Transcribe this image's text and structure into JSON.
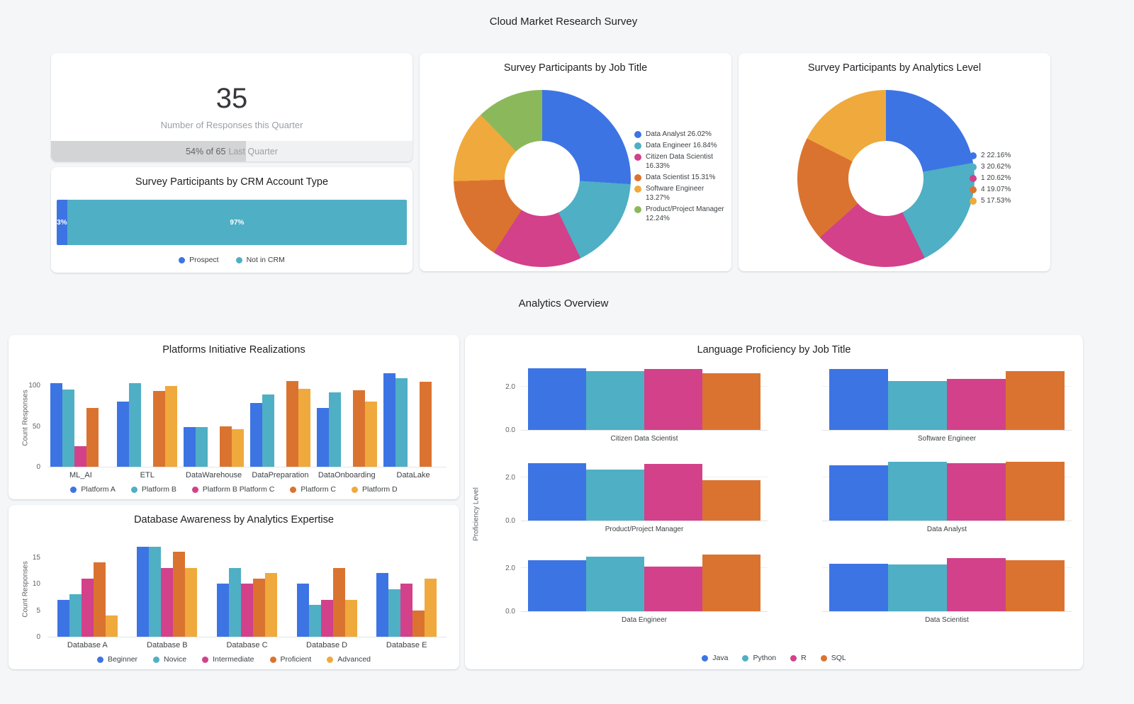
{
  "page": {
    "title": "Cloud Market Research Survey",
    "section_title": "Analytics Overview"
  },
  "colors": {
    "blue": "#3D74E4",
    "teal": "#4FAFC4",
    "pink": "#D2418A",
    "orange": "#DB7330",
    "amber": "#F0A93C",
    "green": "#8CB85C",
    "background": "#F4F6F8",
    "card": "#FFFFFF"
  },
  "scorecard": {
    "value": "35",
    "label": "Number of Responses this Quarter",
    "progress": {
      "strong": "54% of 65",
      "light": "Last Quarter",
      "percent": 54
    }
  },
  "chart_data": [
    {
      "id": "crm-account-type",
      "type": "bar",
      "variant": "stacked-horizontal",
      "title": "Survey Participants by CRM Account Type",
      "segments": [
        {
          "label": "Prospect",
          "value_label": "3%",
          "pct": 3,
          "color": "blue"
        },
        {
          "label": "Not in CRM",
          "value_label": "97%",
          "pct": 97,
          "color": "teal"
        }
      ]
    },
    {
      "id": "job-title-donut",
      "type": "pie",
      "title": "Survey Participants by Job Title",
      "slices": [
        {
          "label": "Data Analyst",
          "pct": 26.02,
          "color": "blue"
        },
        {
          "label": "Data Engineer",
          "pct": 16.84,
          "color": "teal"
        },
        {
          "label": "Citizen Data Scientist",
          "pct": 16.33,
          "color": "pink"
        },
        {
          "label": "Data Scientist",
          "pct": 15.31,
          "color": "orange"
        },
        {
          "label": "Software Engineer",
          "pct": 13.27,
          "color": "amber"
        },
        {
          "label": "Product/Project Manager",
          "pct": 12.24,
          "color": "green"
        }
      ]
    },
    {
      "id": "analytics-level-donut",
      "type": "pie",
      "title": "Survey Participants by Analytics Level",
      "slices": [
        {
          "label": "2",
          "pct": 22.16,
          "color": "blue"
        },
        {
          "label": "3",
          "pct": 20.62,
          "color": "teal"
        },
        {
          "label": "1",
          "pct": 20.62,
          "color": "pink"
        },
        {
          "label": "4",
          "pct": 19.07,
          "color": "orange"
        },
        {
          "label": "5",
          "pct": 17.53,
          "color": "amber"
        }
      ]
    },
    {
      "id": "platforms-initiative",
      "type": "bar",
      "variant": "grouped",
      "title": "Platforms Initiative Realizations",
      "ylabel": "Count Responses",
      "yticks": [
        0,
        50,
        100
      ],
      "ylim": [
        0,
        120
      ],
      "categories": [
        "ML_AI",
        "ETL",
        "DataWarehouse",
        "DataPreparation",
        "DataOnboarding",
        "DataLake"
      ],
      "series": [
        {
          "name": "Platform A",
          "color": "blue",
          "values": [
            103,
            80,
            49,
            78,
            72,
            115
          ]
        },
        {
          "name": "Platform B",
          "color": "teal",
          "values": [
            95,
            103,
            49,
            89,
            91,
            109
          ]
        },
        {
          "name": "Platform B Platform C",
          "color": "pink",
          "values": [
            25,
            null,
            null,
            null,
            null,
            null
          ]
        },
        {
          "name": "Platform C",
          "color": "orange",
          "values": [
            72,
            93,
            50,
            105,
            94,
            104
          ]
        },
        {
          "name": "Platform D",
          "color": "amber",
          "values": [
            null,
            99,
            46,
            96,
            80,
            null
          ]
        }
      ]
    },
    {
      "id": "database-awareness",
      "type": "bar",
      "variant": "grouped",
      "title": "Database Awareness by Analytics Expertise",
      "ylabel": "Count Responses",
      "yticks": [
        0,
        5,
        10,
        15
      ],
      "ylim": [
        0,
        18
      ],
      "categories": [
        "Database A",
        "Database B",
        "Database C",
        "Database D",
        "Database E"
      ],
      "series": [
        {
          "name": "Beginner",
          "color": "blue",
          "values": [
            7,
            17,
            10,
            10,
            12
          ]
        },
        {
          "name": "Novice",
          "color": "teal",
          "values": [
            8,
            17,
            13,
            6,
            9
          ]
        },
        {
          "name": "Intermediate",
          "color": "pink",
          "values": [
            11,
            13,
            10,
            7,
            10
          ]
        },
        {
          "name": "Proficient",
          "color": "orange",
          "values": [
            14,
            16,
            11,
            13,
            5
          ]
        },
        {
          "name": "Advanced",
          "color": "amber",
          "values": [
            4,
            13,
            12,
            7,
            11
          ]
        }
      ]
    },
    {
      "id": "language-proficiency",
      "type": "bar",
      "variant": "small-multiples",
      "title": "Language Proficiency by Job Title",
      "ylabel": "Proficiency Level",
      "yticks": [
        0,
        2
      ],
      "ylim": [
        0,
        3.1
      ],
      "series_labels": [
        "Java",
        "Python",
        "R",
        "SQL"
      ],
      "series_colors": [
        "blue",
        "teal",
        "pink",
        "orange"
      ],
      "panels": [
        {
          "label": "Citizen Data Scientist",
          "values": [
            2.85,
            2.7,
            2.8,
            2.6
          ]
        },
        {
          "label": "Software Engineer",
          "values": [
            2.8,
            2.25,
            2.35,
            2.7
          ]
        },
        {
          "label": "Product/Project Manager",
          "values": [
            2.65,
            2.35,
            2.6,
            1.85
          ]
        },
        {
          "label": "Data Analyst",
          "values": [
            2.55,
            2.7,
            2.65,
            2.7
          ]
        },
        {
          "label": "Data Engineer",
          "values": [
            2.35,
            2.5,
            2.05,
            2.6
          ]
        },
        {
          "label": "Data Scientist",
          "values": [
            2.2,
            2.15,
            2.45,
            2.35
          ]
        }
      ]
    }
  ]
}
